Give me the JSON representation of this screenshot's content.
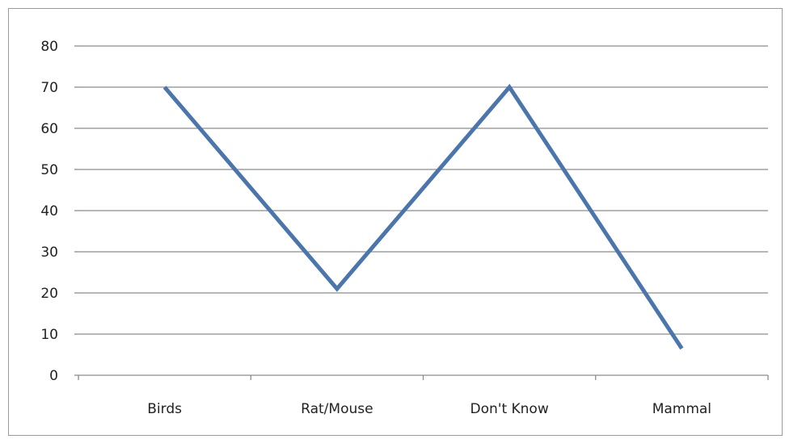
{
  "chart_data": {
    "type": "line",
    "categories": [
      "Birds",
      "Rat/Mouse",
      "Don't Know",
      "Mammal"
    ],
    "series": [
      {
        "values": [
          70,
          21,
          70,
          6.5
        ]
      }
    ],
    "y_ticks": [
      "0",
      "10",
      "20",
      "30",
      "40",
      "50",
      "60",
      "70",
      "80"
    ],
    "ylim": [
      0,
      80
    ],
    "grid": true,
    "legend": "none",
    "colors": {
      "series": "#4a76ad",
      "grid": "#8c8c8c"
    }
  }
}
